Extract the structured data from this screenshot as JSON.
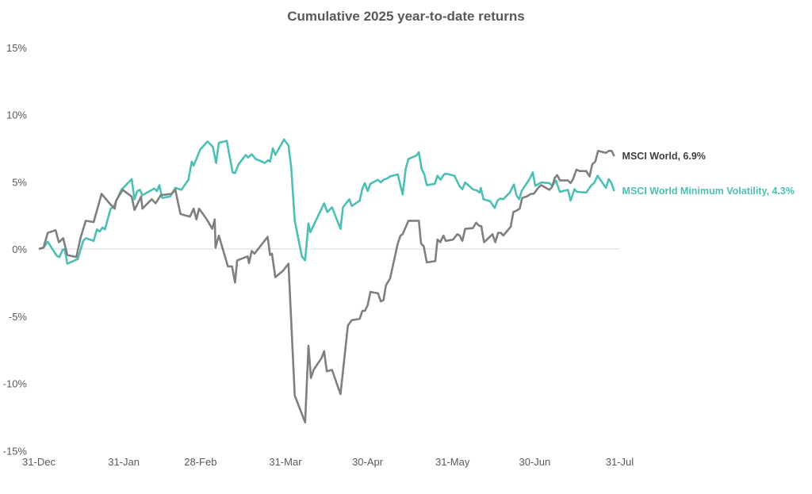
{
  "chart_data": {
    "type": "line",
    "title": "Cumulative 2025 year-to-date returns",
    "xlabel": "",
    "ylabel": "",
    "x_unit": "days since 31-Dec-2024",
    "xlim": [
      0,
      212
    ],
    "ylim": [
      -15,
      15
    ],
    "grid": false,
    "y_ticks": [
      15,
      10,
      5,
      0,
      -5,
      -10,
      -15
    ],
    "y_tick_labels": [
      "15%",
      "10%",
      "5%",
      "0%",
      "-5%",
      "-10%",
      "-15%"
    ],
    "x_ticks": [
      0,
      31,
      59,
      90,
      120,
      151,
      181,
      212
    ],
    "x_tick_labels": [
      "31-Dec",
      "31-Jan",
      "28-Feb",
      "31-Mar",
      "30-Apr",
      "31-May",
      "30-Jun",
      "31-Jul"
    ],
    "series": [
      {
        "name": "MSCI World",
        "color": "#7f7f7f",
        "label": "MSCI World, 6.9%",
        "label_color": "#404040",
        "x": [
          0,
          1.7,
          3.2,
          6.1,
          7.3,
          8.9,
          10.4,
          13.7,
          15.2,
          17.1,
          20,
          22.9,
          26.2,
          27.7,
          28.2,
          30.6,
          33.9,
          34.9,
          37.3,
          37.8,
          41.2,
          42.6,
          44.5,
          48.4,
          49.8,
          51.7,
          55.1,
          56.5,
          57.5,
          58.5,
          61.3,
          63.3,
          64.2,
          64.5,
          65.7,
          69,
          70.5,
          71.6,
          72.4,
          76.2,
          76.7,
          77.7,
          78.7,
          83.5,
          84.4,
          85.1,
          86.3,
          89.2,
          91.1,
          93.4,
          97.2,
          98.4,
          99.3,
          100.3,
          103.2,
          104.1,
          105.1,
          107,
          110.1,
          112.8,
          114.2,
          117.1,
          118.1,
          119,
          120,
          121,
          123.8,
          124.8,
          125.8,
          126.7,
          128.2,
          131,
          132,
          132.8,
          134.9,
          138.7,
          139.5,
          140.5,
          141.6,
          144.7,
          145.5,
          146.5,
          147.7,
          148.5,
          151.2,
          152.7,
          153.6,
          154.6,
          155.6,
          158.4,
          159.6,
          160.9,
          161.5,
          162.5,
          165.6,
          166.6,
          167.6,
          168.7,
          169.5,
          172.2,
          173.2,
          174.3,
          175.5,
          176.4,
          178,
          179.6,
          180.6,
          182.5,
          183.4,
          186.3,
          187.3,
          188.3,
          189.2,
          190.2,
          193.1,
          194.1,
          195,
          196.2,
          197.4,
          199.8,
          201,
          202,
          203.1,
          204.1,
          207,
          208,
          209.1,
          210
        ],
        "y": [
          0,
          0.1,
          1.2,
          1.4,
          0.5,
          0.8,
          -0.45,
          -0.6,
          0.8,
          2.1,
          2.0,
          4.1,
          3.3,
          3.0,
          3.6,
          4.4,
          3.9,
          2.9,
          3.9,
          3.0,
          3.7,
          3.4,
          4.0,
          4.1,
          4.4,
          2.6,
          2.4,
          3.0,
          2.2,
          3.0,
          2.2,
          1.5,
          2.2,
          0.1,
          1.0,
          -1.3,
          -1.3,
          -2.5,
          -0.85,
          -0.55,
          -1.05,
          -0.15,
          -0.35,
          0.9,
          -0.45,
          -0.35,
          -2.1,
          -1.6,
          -1.1,
          -10.9,
          -12.9,
          -7.2,
          -9.6,
          -9.0,
          -8.1,
          -7.6,
          -9.1,
          -9.0,
          -10.8,
          -5.7,
          -5.3,
          -5.2,
          -4.6,
          -4.6,
          -4.2,
          -3.2,
          -3.3,
          -3.9,
          -3.8,
          -2.7,
          -2.2,
          0.4,
          1.0,
          1.1,
          2.1,
          2.1,
          0.4,
          0.2,
          -1.0,
          -0.9,
          0.7,
          0.5,
          1.0,
          0.6,
          0.7,
          1.1,
          1.0,
          0.6,
          1.5,
          1.55,
          1.95,
          1.7,
          1.7,
          0.5,
          1.1,
          0.5,
          1.2,
          1.2,
          1.0,
          1.65,
          2.75,
          2.85,
          3.0,
          3.8,
          3.9,
          4.1,
          4.1,
          4.6,
          4.75,
          4.4,
          4.6,
          5.3,
          5.5,
          5.1,
          5.1,
          4.9,
          5.2,
          5.9,
          5.8,
          5.8,
          5.4,
          6.3,
          6.5,
          7.3,
          7.15,
          7.3,
          7.3,
          6.9
        ]
      },
      {
        "name": "MSCI World Minimum Volatility",
        "color": "#4dbfb3",
        "label": "MSCI World Minimum Volatility, 4.3%",
        "label_color": "#4dbfb3",
        "x": [
          0,
          1.7,
          3.2,
          6.5,
          7.5,
          8.7,
          9.4,
          10.4,
          14.2,
          16.2,
          17.1,
          20,
          21.2,
          22.2,
          23.2,
          24.1,
          26.2,
          27.2,
          30.1,
          33.9,
          34.9,
          35.9,
          36.9,
          37.8,
          42.1,
          43.1,
          44,
          45,
          47.9,
          49.8,
          52,
          54.6,
          55.8,
          56.5,
          58.9,
          61.6,
          63.5,
          64.7,
          65.7,
          68.6,
          70.7,
          71.6,
          72.9,
          75.5,
          76.4,
          77.7,
          79.1,
          82.5,
          83.7,
          84.4,
          85.4,
          86.3,
          89.5,
          91.1,
          92.1,
          93.4,
          96,
          97.2,
          98.4,
          99.1,
          104.1,
          105.3,
          107,
          110.1,
          111,
          113.3,
          114.2,
          117.1,
          118.1,
          119,
          120,
          121,
          123.8,
          124.8,
          125.8,
          127.2,
          128.2,
          131,
          132.8,
          133.9,
          134.9,
          137.8,
          138.7,
          139.7,
          140.7,
          141.6,
          144.5,
          145.5,
          146.6,
          147.9,
          148.8,
          151.7,
          153.6,
          154.6,
          155.6,
          158.4,
          159.9,
          160.9,
          161.3,
          162.3,
          164.7,
          166.4,
          167.4,
          168.4,
          169.5,
          171.9,
          173.4,
          174.3,
          175.3,
          176.3,
          179.1,
          180.3,
          181.2,
          183.4,
          186.3,
          187.5,
          188.7,
          190.2,
          193.1,
          194.1,
          195.5,
          196.4,
          199.8,
          201.7,
          202.7,
          203.9,
          207,
          208,
          208.9,
          210
        ],
        "y": [
          0,
          0.1,
          0.55,
          -0.5,
          -0.6,
          -0.05,
          0,
          -1.1,
          -0.75,
          0.6,
          0.8,
          0.6,
          1.45,
          1.3,
          1.6,
          1.45,
          3.0,
          3.1,
          4.4,
          5.2,
          3.7,
          4.3,
          4.4,
          4.0,
          4.5,
          4.3,
          4.75,
          3.8,
          3.9,
          4.55,
          4.4,
          5.15,
          6.5,
          6.2,
          7.4,
          8.0,
          7.6,
          6.4,
          7.9,
          8.05,
          5.7,
          5.65,
          6.3,
          7.0,
          6.8,
          7.05,
          6.7,
          6.4,
          6.6,
          6.5,
          7.5,
          7.0,
          8.15,
          7.7,
          6.1,
          2.1,
          -0.55,
          -0.85,
          1.9,
          1.25,
          3.4,
          2.75,
          3.1,
          1.5,
          3.1,
          3.7,
          3.2,
          3.6,
          4.5,
          4.9,
          4.3,
          4.85,
          5.15,
          4.95,
          5.15,
          5.25,
          5.4,
          5.55,
          4.05,
          5.95,
          6.7,
          6.95,
          7.2,
          5.95,
          5.55,
          4.75,
          4.85,
          5.45,
          5.15,
          5.55,
          5.6,
          5.45,
          4.65,
          4.45,
          4.95,
          4.45,
          4.35,
          4.2,
          4.55,
          3.7,
          3.55,
          3.05,
          3.6,
          3.75,
          3.7,
          4.2,
          4.8,
          4.0,
          3.7,
          4.35,
          5.2,
          5.7,
          4.7,
          4.95,
          4.9,
          4.7,
          5.1,
          4.25,
          4.4,
          3.6,
          4.45,
          4.25,
          4.2,
          4.75,
          4.9,
          5.45,
          4.55,
          5.2,
          4.95,
          4.3
        ]
      }
    ]
  }
}
